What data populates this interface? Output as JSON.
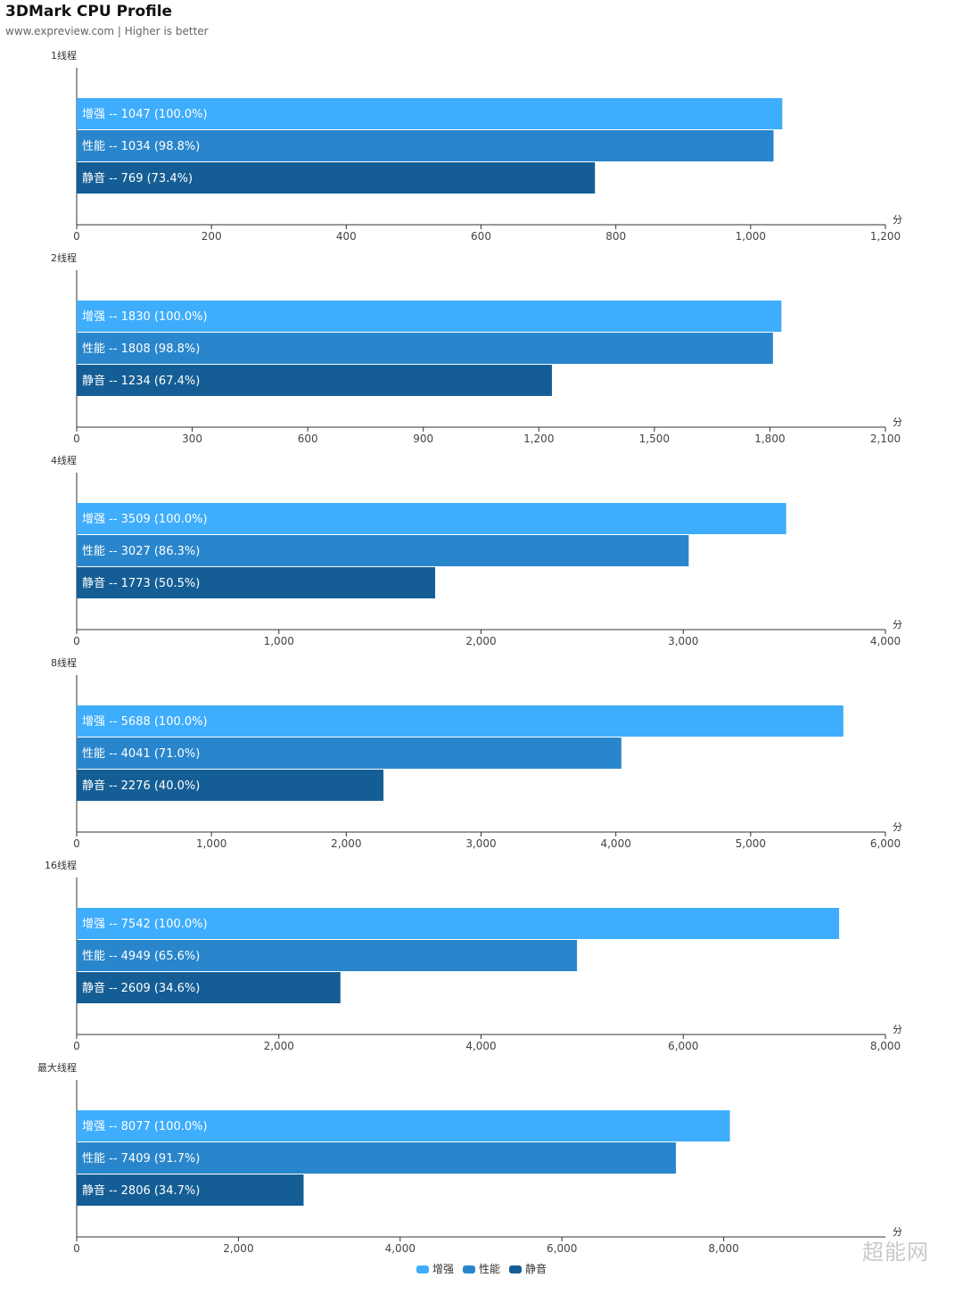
{
  "header": {
    "title": "3DMark CPU Profile",
    "subtitle": "www.expreview.com | Higher is better"
  },
  "colors": {
    "增强": "#3EADFC",
    "性能": "#2986CC",
    "静音": "#155E95"
  },
  "unit": "分",
  "legend": [
    "增强",
    "性能",
    "静音"
  ],
  "watermark": "超能网",
  "chart_data": [
    {
      "type": "bar",
      "title": "1线程",
      "xmax": 1200,
      "ticks": [
        0,
        200,
        400,
        600,
        800,
        1000,
        1200
      ],
      "series": [
        {
          "name": "增强",
          "value": 1047,
          "pct": "100.0%"
        },
        {
          "name": "性能",
          "value": 1034,
          "pct": "98.8%"
        },
        {
          "name": "静音",
          "value": 769,
          "pct": "73.4%"
        }
      ]
    },
    {
      "type": "bar",
      "title": "2线程",
      "xmax": 2100,
      "ticks": [
        0,
        300,
        600,
        900,
        1200,
        1500,
        1800,
        2100
      ],
      "series": [
        {
          "name": "增强",
          "value": 1830,
          "pct": "100.0%"
        },
        {
          "name": "性能",
          "value": 1808,
          "pct": "98.8%"
        },
        {
          "name": "静音",
          "value": 1234,
          "pct": "67.4%"
        }
      ]
    },
    {
      "type": "bar",
      "title": "4线程",
      "xmax": 4000,
      "ticks": [
        0,
        1000,
        2000,
        3000,
        4000
      ],
      "series": [
        {
          "name": "增强",
          "value": 3509,
          "pct": "100.0%"
        },
        {
          "name": "性能",
          "value": 3027,
          "pct": "86.3%"
        },
        {
          "name": "静音",
          "value": 1773,
          "pct": "50.5%"
        }
      ]
    },
    {
      "type": "bar",
      "title": "8线程",
      "xmax": 6000,
      "ticks": [
        0,
        1000,
        2000,
        3000,
        4000,
        5000,
        6000
      ],
      "series": [
        {
          "name": "增强",
          "value": 5688,
          "pct": "100.0%"
        },
        {
          "name": "性能",
          "value": 4041,
          "pct": "71.0%"
        },
        {
          "name": "静音",
          "value": 2276,
          "pct": "40.0%"
        }
      ]
    },
    {
      "type": "bar",
      "title": "16线程",
      "xmax": 8000,
      "ticks": [
        0,
        2000,
        4000,
        6000,
        8000
      ],
      "series": [
        {
          "name": "增强",
          "value": 7542,
          "pct": "100.0%"
        },
        {
          "name": "性能",
          "value": 4949,
          "pct": "65.6%"
        },
        {
          "name": "静音",
          "value": 2609,
          "pct": "34.6%"
        }
      ]
    },
    {
      "type": "bar",
      "title": "最大线程",
      "xmax": 10000,
      "ticks": [
        0,
        2000,
        4000,
        6000,
        8000
      ],
      "series": [
        {
          "name": "增强",
          "value": 8077,
          "pct": "100.0%"
        },
        {
          "name": "性能",
          "value": 7409,
          "pct": "91.7%"
        },
        {
          "name": "静音",
          "value": 2806,
          "pct": "34.7%"
        }
      ]
    }
  ]
}
